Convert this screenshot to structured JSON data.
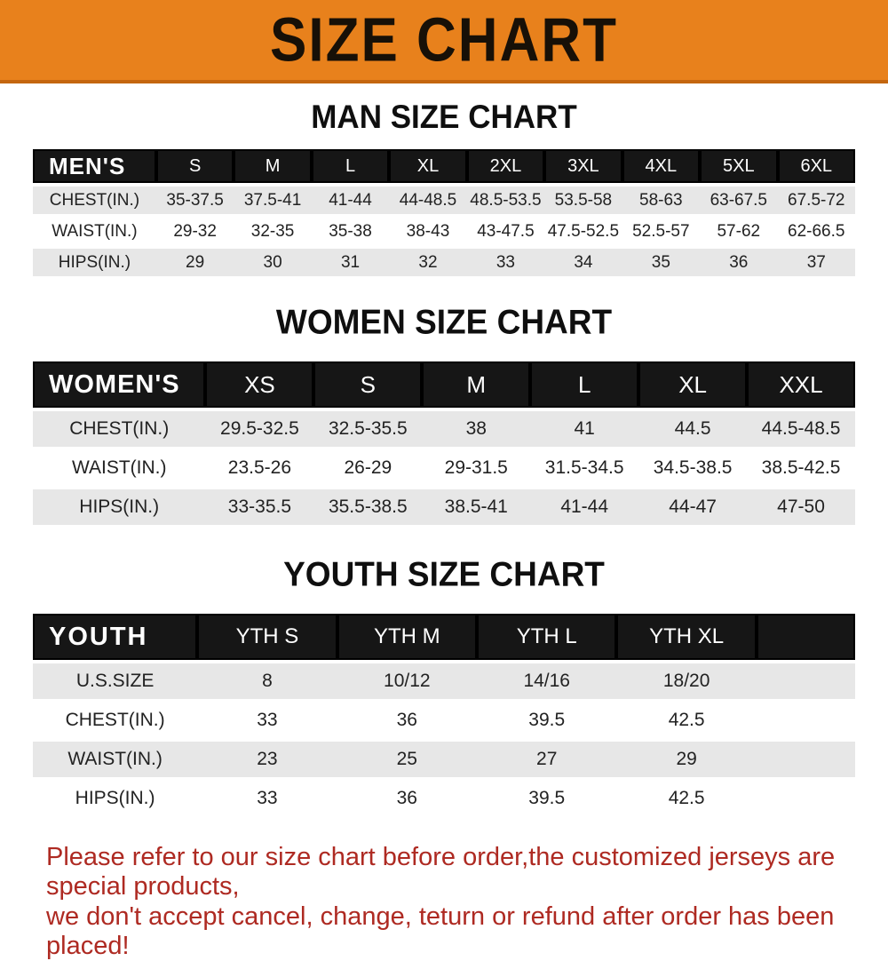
{
  "banner": {
    "title": "SIZE CHART",
    "bg_color": "#E8811C",
    "text_color": "#171007"
  },
  "colors": {
    "header_bar": "#161616",
    "row_stripe": "#e7e7e7",
    "footer_red": "#AE2A22"
  },
  "sections": [
    {
      "title": "MAN SIZE CHART",
      "group_label": "MEN'S",
      "columns": [
        "S",
        "M",
        "L",
        "XL",
        "2XL",
        "3XL",
        "4XL",
        "5XL",
        "6XL"
      ],
      "rows": [
        {
          "label": "CHEST(IN.)",
          "values": [
            "35-37.5",
            "37.5-41",
            "41-44",
            "44-48.5",
            "48.5-53.5",
            "53.5-58",
            "58-63",
            "63-67.5",
            "67.5-72"
          ]
        },
        {
          "label": "WAIST(IN.)",
          "values": [
            "29-32",
            "32-35",
            "35-38",
            "38-43",
            "43-47.5",
            "47.5-52.5",
            "52.5-57",
            "57-62",
            "62-66.5"
          ]
        },
        {
          "label": "HIPS(IN.)",
          "values": [
            "29",
            "30",
            "31",
            "32",
            "33",
            "34",
            "35",
            "36",
            "37"
          ]
        }
      ]
    },
    {
      "title": "WOMEN SIZE CHART",
      "group_label": "WOMEN'S",
      "columns": [
        "XS",
        "S",
        "M",
        "L",
        "XL",
        "XXL"
      ],
      "rows": [
        {
          "label": "CHEST(IN.)",
          "values": [
            "29.5-32.5",
            "32.5-35.5",
            "38",
            "41",
            "44.5",
            "44.5-48.5"
          ]
        },
        {
          "label": "WAIST(IN.)",
          "values": [
            "23.5-26",
            "26-29",
            "29-31.5",
            "31.5-34.5",
            "34.5-38.5",
            "38.5-42.5"
          ]
        },
        {
          "label": "HIPS(IN.)",
          "values": [
            "33-35.5",
            "35.5-38.5",
            "38.5-41",
            "41-44",
            "44-47",
            "47-50"
          ]
        }
      ]
    },
    {
      "title": "YOUTH SIZE CHART",
      "group_label": "YOUTH",
      "columns": [
        "YTH S",
        "YTH M",
        "YTH L",
        "YTH XL"
      ],
      "rows": [
        {
          "label": "U.S.SIZE",
          "values": [
            "8",
            "10/12",
            "14/16",
            "18/20"
          ]
        },
        {
          "label": "CHEST(IN.)",
          "values": [
            "33",
            "36",
            "39.5",
            "42.5"
          ]
        },
        {
          "label": "WAIST(IN.)",
          "values": [
            "23",
            "25",
            "27",
            "29"
          ]
        },
        {
          "label": "HIPS(IN.)",
          "values": [
            "33",
            "36",
            "39.5",
            "42.5"
          ]
        }
      ]
    }
  ],
  "footer": {
    "line1": "Please refer to our size chart before order,the customized jerseys are special products,",
    "line2": "we don't accept cancel, change, teturn or refund after order has been placed!"
  }
}
